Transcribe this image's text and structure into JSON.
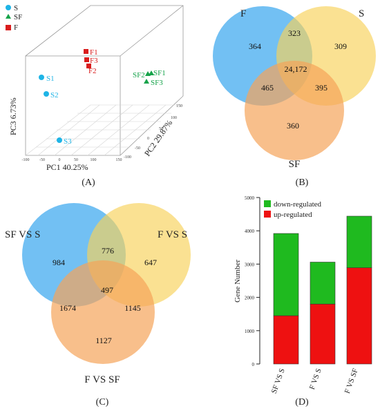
{
  "panel_labels": {
    "A": "(A)",
    "B": "(B)",
    "C": "(C)",
    "D": "(D)"
  },
  "colors": {
    "S": "#1eb4e6",
    "SF": "#16a34a",
    "F": "#d91c1c",
    "down": "#1fba1f",
    "up": "#ee1111",
    "venn_blue": "#4aaef0",
    "venn_yellow": "#f8d25a",
    "venn_orange": "#f5a45a"
  },
  "chart_data": [
    {
      "type": "scatter",
      "subtype": "3d-pca",
      "legend": [
        {
          "name": "S",
          "marker": "circle",
          "color": "#1eb4e6"
        },
        {
          "name": "SF",
          "marker": "triangle",
          "color": "#16a34a"
        },
        {
          "name": "F",
          "marker": "square",
          "color": "#d91c1c"
        }
      ],
      "axes": {
        "x": {
          "label": "PC1 40.25%",
          "ticks": [
            "-100",
            "-50",
            "0",
            "50",
            "100",
            "150"
          ]
        },
        "y": {
          "label": "PC2 29.87%",
          "ticks": [
            "-100",
            "-50",
            "0",
            "50",
            "100",
            "150"
          ]
        },
        "z": {
          "label": "PC3 6.73%"
        }
      },
      "points": [
        {
          "label": "S1",
          "group": "S"
        },
        {
          "label": "S2",
          "group": "S"
        },
        {
          "label": "S3",
          "group": "S"
        },
        {
          "label": "F1",
          "group": "F"
        },
        {
          "label": "F3",
          "group": "F"
        },
        {
          "label": "F2",
          "group": "F"
        },
        {
          "label": "SF2",
          "group": "SF"
        },
        {
          "label": "SF1",
          "group": "SF"
        },
        {
          "label": "SF3",
          "group": "SF"
        }
      ]
    },
    {
      "type": "venn",
      "sets": [
        "F",
        "S",
        "SF"
      ],
      "regions": {
        "F_only": "364",
        "S_only": "309",
        "SF_only": "360",
        "F_S": "323",
        "F_SF": "465",
        "S_SF": "395",
        "all": "24,172"
      }
    },
    {
      "type": "venn",
      "sets": [
        "SF VS S",
        "F VS S",
        "F VS SF"
      ],
      "regions": {
        "A_only": "984",
        "B_only": "647",
        "C_only": "1127",
        "A_B": "776",
        "A_C": "1674",
        "B_C": "1145",
        "all": "497"
      }
    },
    {
      "type": "bar",
      "stacked": true,
      "categories": [
        "SF VS S",
        "F VS S",
        "F VS SF"
      ],
      "series": [
        {
          "name": "up-regulated",
          "values": [
            1450,
            1800,
            2890
          ],
          "color": "#ee1111"
        },
        {
          "name": "down-regulated",
          "values": [
            2470,
            1260,
            1550
          ],
          "color": "#1fba1f"
        }
      ],
      "ylabel": "Gene Number",
      "ylim": [
        0,
        5000
      ],
      "yticks": [
        "0",
        "1000",
        "2000",
        "3000",
        "4000",
        "5000"
      ],
      "legend_position": "top-left"
    }
  ]
}
